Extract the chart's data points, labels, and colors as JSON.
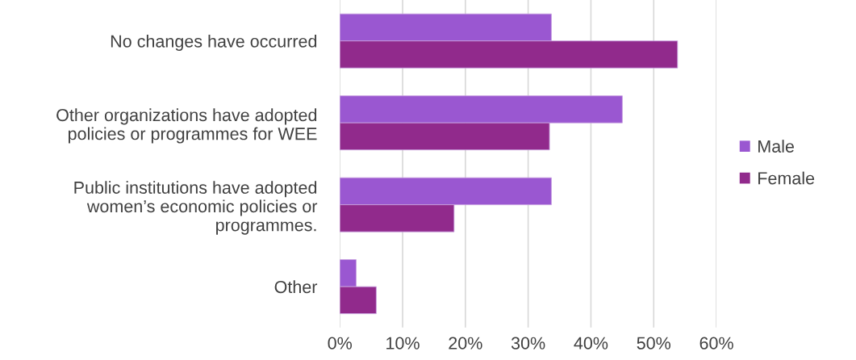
{
  "chart_data": {
    "type": "bar",
    "orientation": "horizontal",
    "categories": [
      "No changes have occurred",
      "Other organizations have adopted\npolicies or programmes for WEE",
      "Public institutions have adopted\nwomen’s economic policies or\nprogrammes.",
      "Other"
    ],
    "series": [
      {
        "name": "Male",
        "color": "#9a57d1",
        "values": [
          33.7,
          45.0,
          33.7,
          2.6
        ]
      },
      {
        "name": "Female",
        "color": "#912a8c",
        "values": [
          53.8,
          33.4,
          18.2,
          5.8
        ]
      }
    ],
    "xlim": [
      0,
      60
    ],
    "xticks": [
      {
        "value": 0,
        "label": "0%"
      },
      {
        "value": 10,
        "label": "10%"
      },
      {
        "value": 20,
        "label": "20%"
      },
      {
        "value": 30,
        "label": "30%"
      },
      {
        "value": 40,
        "label": "40%"
      },
      {
        "value": 50,
        "label": "50%"
      },
      {
        "value": 60,
        "label": "60%"
      }
    ],
    "grid": "x",
    "legend": "right"
  }
}
